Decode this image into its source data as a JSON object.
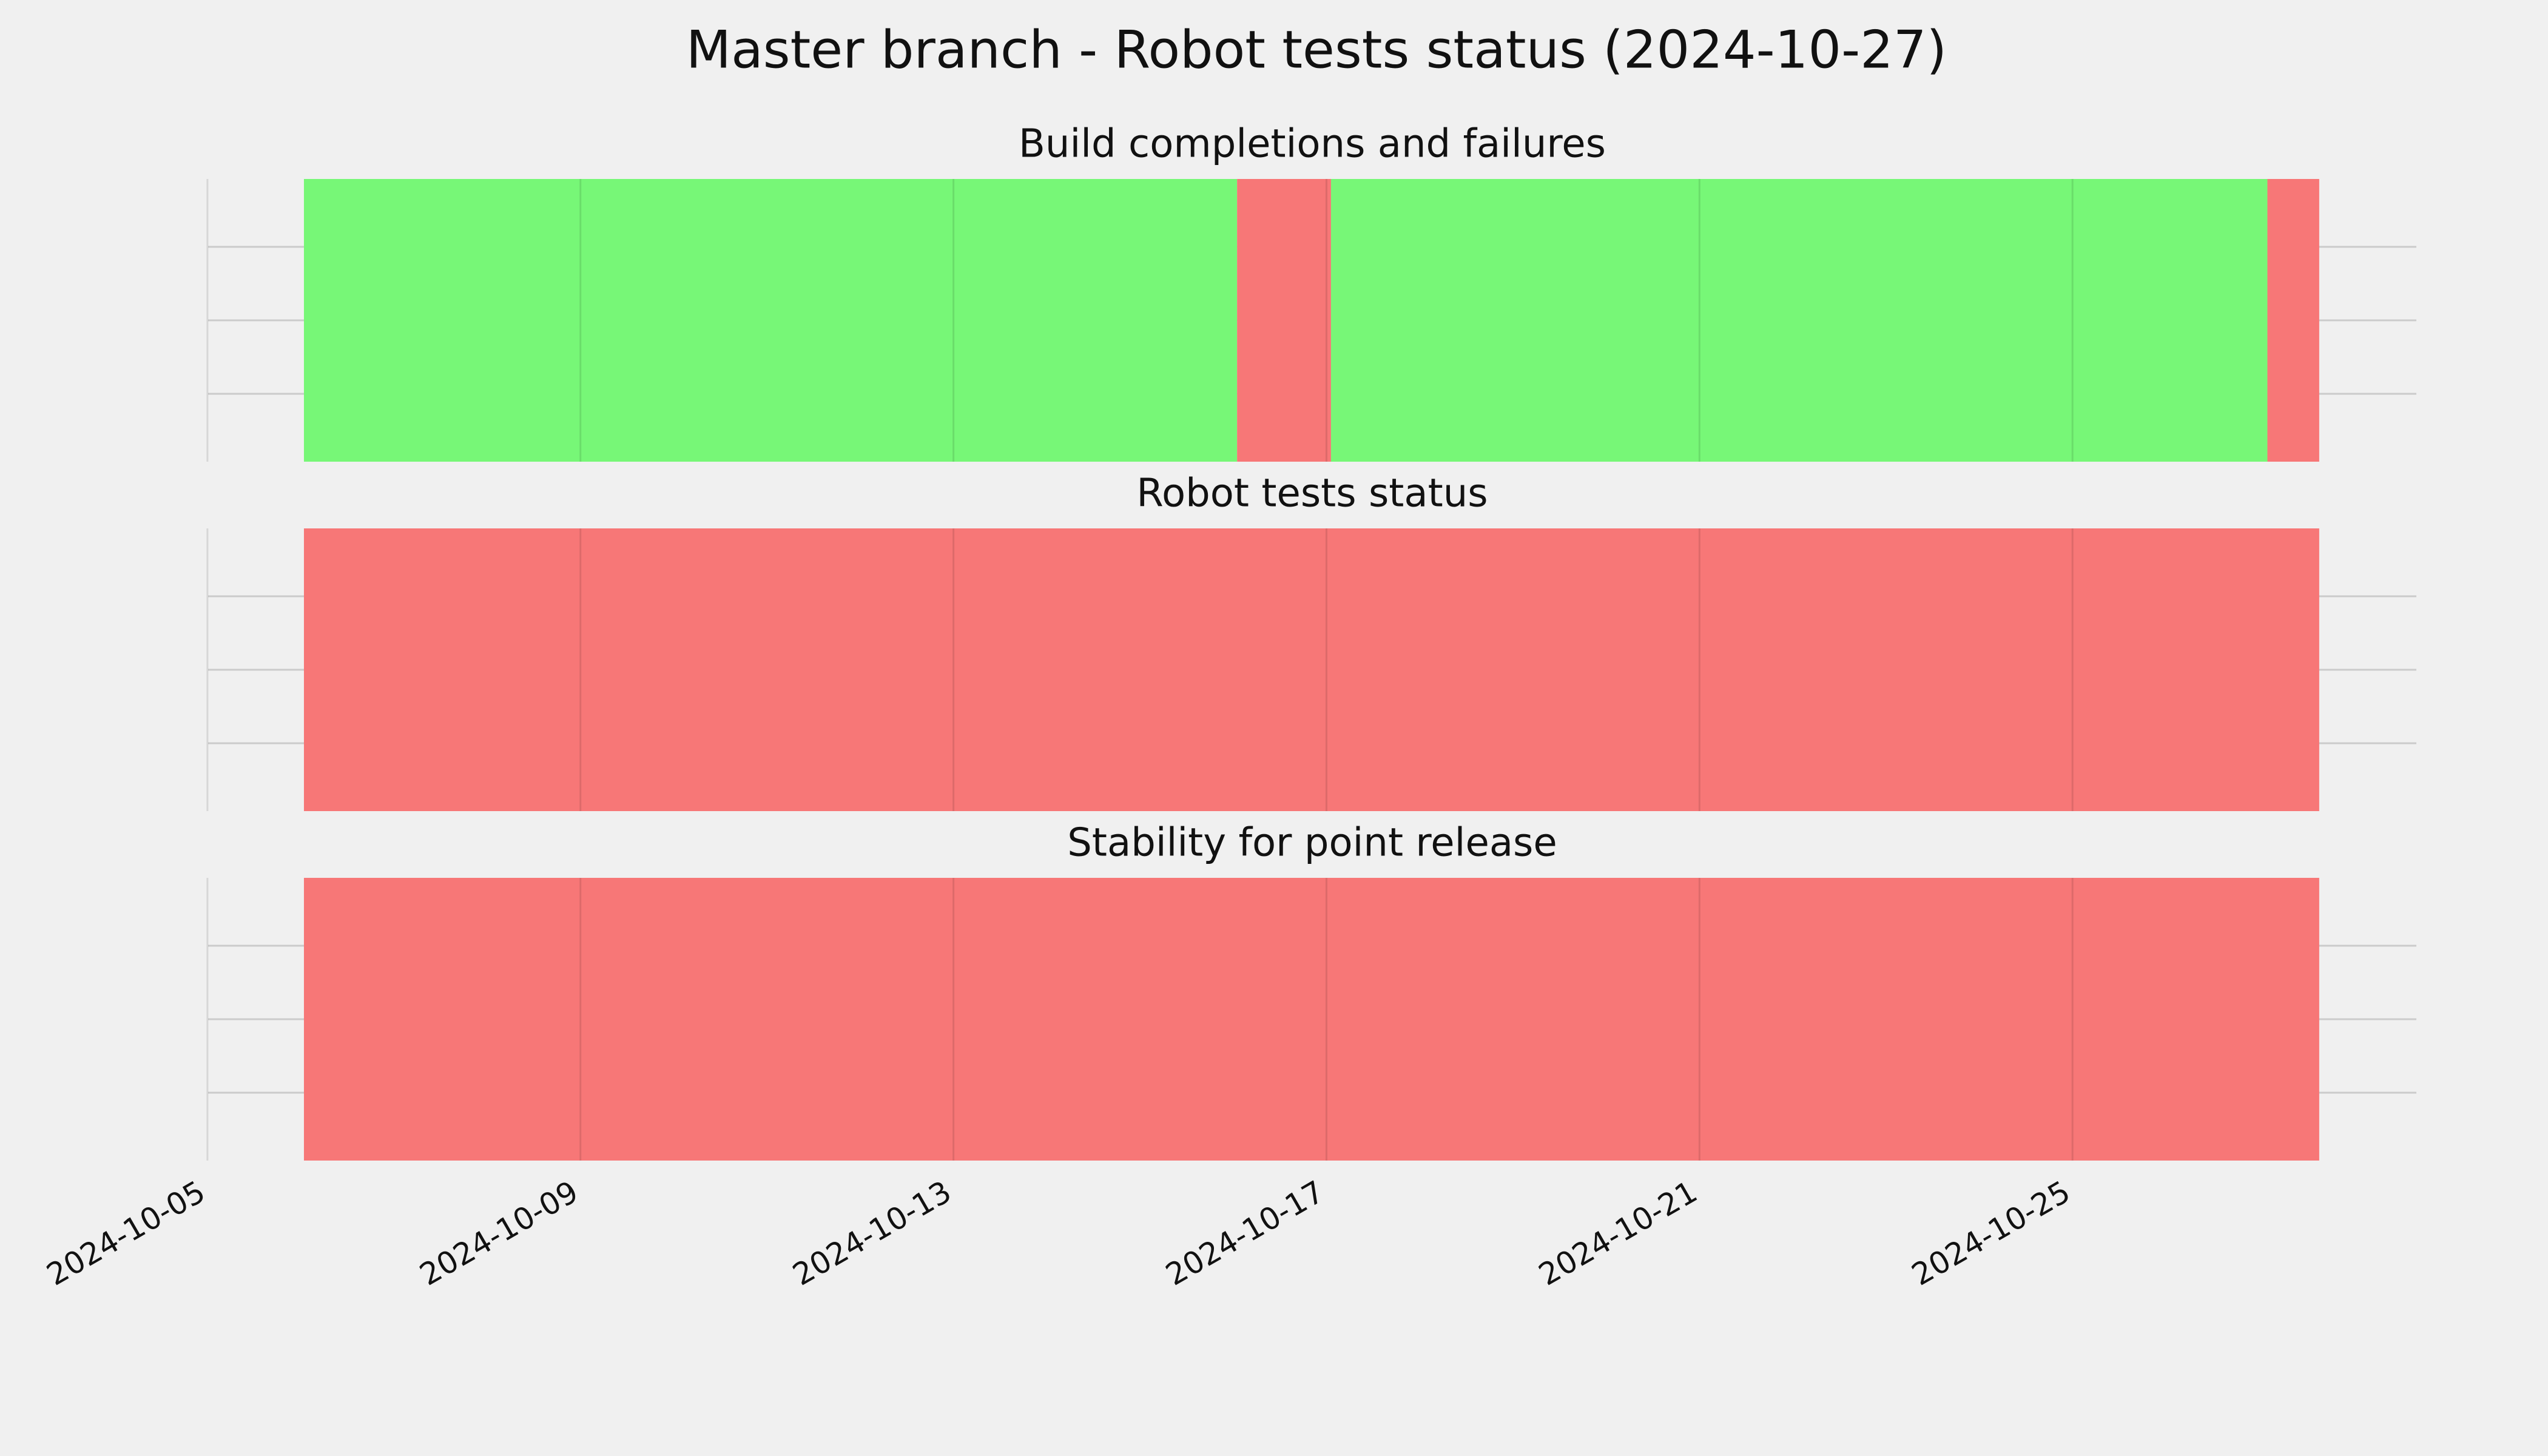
{
  "chart_data": {
    "type": "timeline",
    "title": "Master branch - Robot tests status (2024-10-27)",
    "xlim": [
      "2024-10-05T00:10",
      "2024-10-28T16:30"
    ],
    "xticks": [
      "2024-10-05",
      "2024-10-09",
      "2024-10-13",
      "2024-10-17",
      "2024-10-21",
      "2024-10-25"
    ],
    "grid": true,
    "panels": [
      {
        "title": "Build completions and failures",
        "spans": [
          {
            "start": "2024-10-06T00:50",
            "end": "2024-10-16T01:00",
            "color": "#77f777"
          },
          {
            "start": "2024-10-16T01:00",
            "end": "2024-10-17T01:10",
            "color": "#f77777"
          },
          {
            "start": "2024-10-17T01:10",
            "end": "2024-10-27T02:10",
            "color": "#77f777"
          },
          {
            "start": "2024-10-27T02:10",
            "end": "2024-10-27T15:30",
            "color": "#f77777"
          }
        ]
      },
      {
        "title": "Robot tests status",
        "spans": [
          {
            "start": "2024-10-06T00:50",
            "end": "2024-10-27T15:30",
            "color": "#f77777"
          }
        ]
      },
      {
        "title": "Stability for point release",
        "spans": [
          {
            "start": "2024-10-06T00:50",
            "end": "2024-10-27T15:30",
            "color": "#f77777"
          }
        ]
      }
    ]
  }
}
